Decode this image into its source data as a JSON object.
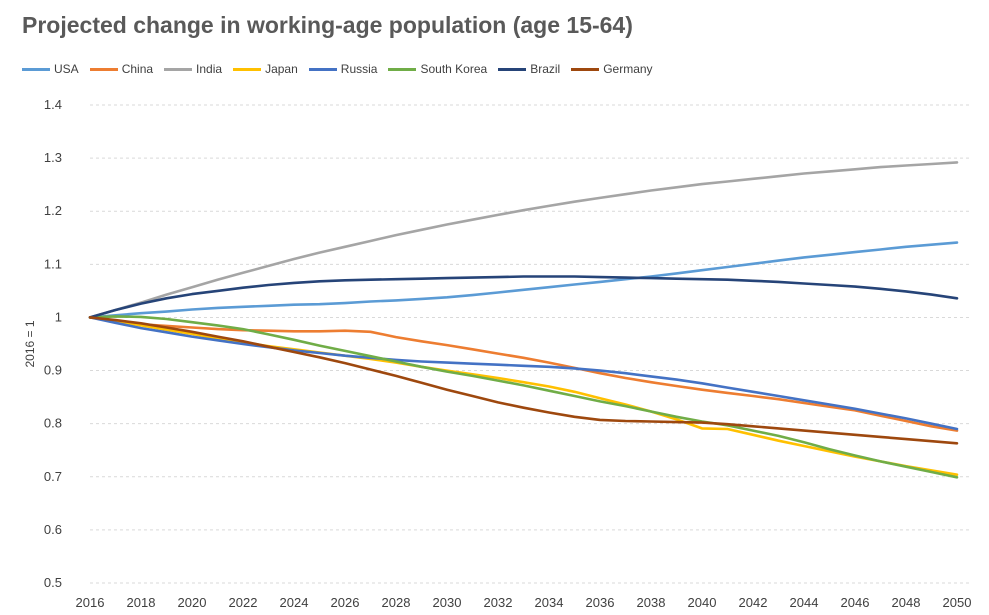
{
  "chart_data": {
    "type": "line",
    "title": "Projected change in working-age population (age 15-64)",
    "xlabel": "",
    "ylabel": "2016 = 1",
    "x": [
      2016,
      2017,
      2018,
      2019,
      2020,
      2021,
      2022,
      2023,
      2024,
      2025,
      2026,
      2027,
      2028,
      2029,
      2030,
      2031,
      2032,
      2033,
      2034,
      2035,
      2036,
      2037,
      2038,
      2039,
      2040,
      2041,
      2042,
      2043,
      2044,
      2045,
      2046,
      2047,
      2048,
      2049,
      2050
    ],
    "x_ticks": [
      "2016",
      "2018",
      "2020",
      "2022",
      "2024",
      "2026",
      "2028",
      "2030",
      "2032",
      "2034",
      "2036",
      "2038",
      "2040",
      "2042",
      "2044",
      "2046",
      "2048",
      "2050"
    ],
    "y_ticks": [
      "0.5",
      "0.6",
      "0.7",
      "0.8",
      "0.9",
      "1",
      "1.1",
      "1.2",
      "1.3",
      "1.4"
    ],
    "ylim": [
      0.5,
      1.4
    ],
    "grid": "horizontal dashed",
    "legend_position": "top",
    "series": [
      {
        "name": "USA",
        "color": "#5b9bd5",
        "values": [
          1.0,
          1.004,
          1.008,
          1.011,
          1.015,
          1.018,
          1.02,
          1.022,
          1.024,
          1.025,
          1.027,
          1.03,
          1.032,
          1.035,
          1.038,
          1.042,
          1.047,
          1.052,
          1.057,
          1.062,
          1.067,
          1.072,
          1.077,
          1.083,
          1.089,
          1.095,
          1.101,
          1.107,
          1.113,
          1.118,
          1.123,
          1.128,
          1.133,
          1.137,
          1.141
        ]
      },
      {
        "name": "China",
        "color": "#ed7d31",
        "values": [
          1.0,
          0.993,
          0.987,
          0.984,
          0.981,
          0.978,
          0.976,
          0.975,
          0.974,
          0.974,
          0.975,
          0.973,
          0.963,
          0.955,
          0.948,
          0.94,
          0.932,
          0.924,
          0.915,
          0.905,
          0.895,
          0.886,
          0.878,
          0.871,
          0.864,
          0.858,
          0.852,
          0.846,
          0.839,
          0.832,
          0.825,
          0.815,
          0.805,
          0.795,
          0.787
        ]
      },
      {
        "name": "India",
        "color": "#a5a5a5",
        "values": [
          1.0,
          1.014,
          1.028,
          1.043,
          1.057,
          1.071,
          1.084,
          1.097,
          1.11,
          1.122,
          1.133,
          1.144,
          1.155,
          1.165,
          1.175,
          1.184,
          1.193,
          1.202,
          1.21,
          1.218,
          1.225,
          1.232,
          1.239,
          1.245,
          1.251,
          1.256,
          1.261,
          1.266,
          1.271,
          1.275,
          1.279,
          1.283,
          1.286,
          1.289,
          1.292
        ]
      },
      {
        "name": "Japan",
        "color": "#ffc000",
        "values": [
          1.0,
          0.993,
          0.985,
          0.977,
          0.969,
          0.961,
          0.953,
          0.946,
          0.94,
          0.934,
          0.928,
          0.922,
          0.915,
          0.907,
          0.9,
          0.893,
          0.886,
          0.878,
          0.87,
          0.86,
          0.848,
          0.836,
          0.823,
          0.808,
          0.791,
          0.79,
          0.779,
          0.768,
          0.758,
          0.748,
          0.738,
          0.729,
          0.72,
          0.712,
          0.704
        ]
      },
      {
        "name": "Russia",
        "color": "#4472c4",
        "values": [
          1.0,
          0.99,
          0.98,
          0.972,
          0.964,
          0.957,
          0.95,
          0.944,
          0.938,
          0.933,
          0.928,
          0.924,
          0.92,
          0.917,
          0.915,
          0.913,
          0.911,
          0.909,
          0.907,
          0.904,
          0.9,
          0.895,
          0.889,
          0.883,
          0.876,
          0.868,
          0.86,
          0.852,
          0.844,
          0.836,
          0.828,
          0.819,
          0.81,
          0.8,
          0.79
        ]
      },
      {
        "name": "South Korea",
        "color": "#70ad47",
        "values": [
          1.0,
          1.002,
          1.001,
          0.997,
          0.991,
          0.985,
          0.978,
          0.968,
          0.958,
          0.947,
          0.937,
          0.927,
          0.917,
          0.907,
          0.898,
          0.89,
          0.881,
          0.872,
          0.862,
          0.852,
          0.842,
          0.833,
          0.823,
          0.813,
          0.804,
          0.797,
          0.787,
          0.777,
          0.765,
          0.752,
          0.74,
          0.729,
          0.719,
          0.709,
          0.699
        ]
      },
      {
        "name": "Brazil",
        "color": "#264478",
        "values": [
          1.0,
          1.014,
          1.026,
          1.036,
          1.044,
          1.05,
          1.056,
          1.061,
          1.065,
          1.068,
          1.07,
          1.071,
          1.072,
          1.073,
          1.074,
          1.075,
          1.076,
          1.077,
          1.077,
          1.077,
          1.076,
          1.075,
          1.074,
          1.073,
          1.072,
          1.071,
          1.069,
          1.067,
          1.064,
          1.061,
          1.058,
          1.054,
          1.049,
          1.043,
          1.036
        ]
      },
      {
        "name": "Germany",
        "color": "#9e480e",
        "values": [
          1.0,
          0.995,
          0.989,
          0.981,
          0.973,
          0.964,
          0.955,
          0.945,
          0.935,
          0.925,
          0.914,
          0.902,
          0.89,
          0.877,
          0.864,
          0.852,
          0.84,
          0.83,
          0.821,
          0.813,
          0.807,
          0.805,
          0.804,
          0.803,
          0.802,
          0.799,
          0.795,
          0.791,
          0.787,
          0.783,
          0.779,
          0.775,
          0.771,
          0.767,
          0.763
        ]
      }
    ]
  }
}
